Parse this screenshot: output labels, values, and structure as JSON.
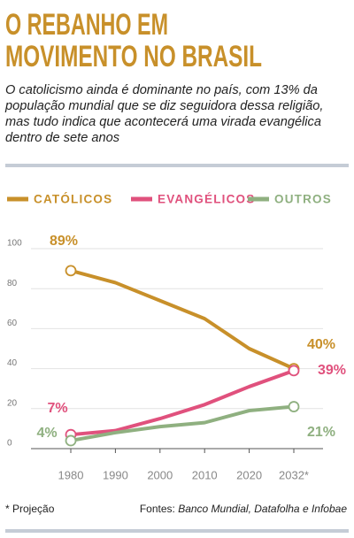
{
  "chart_data": {
    "type": "line",
    "title": [
      "O REBANHO EM",
      "MOVIMENTO NO BRASIL"
    ],
    "subtitle": "O catolicismo ainda é dominante no país, com 13% da população mundial que se diz seguidora dessa religião, mas tudo indica que acontecerá uma virada evangélica dentro de sete anos",
    "categories": [
      "1980",
      "1990",
      "2000",
      "2010",
      "2020",
      "2032*"
    ],
    "series": [
      {
        "name": "CATÓLICOS",
        "color": "#c8902a",
        "values": [
          89,
          83,
          74,
          65,
          50,
          40
        ],
        "value_labels": [
          "89%",
          null,
          null,
          null,
          null,
          "40%"
        ]
      },
      {
        "name": "EVANGÉLICOS",
        "color": "#e0517d",
        "values": [
          7,
          9,
          15,
          22,
          31,
          39
        ],
        "value_labels": [
          "7%",
          null,
          null,
          null,
          null,
          "39%"
        ]
      },
      {
        "name": "OUTROS",
        "color": "#8fb080",
        "values": [
          4,
          8,
          11,
          13,
          19,
          21
        ],
        "value_labels": [
          "4%",
          null,
          null,
          null,
          null,
          "21%"
        ]
      }
    ],
    "ylim": [
      0,
      100
    ],
    "yticks": [
      0,
      20,
      40,
      60,
      80,
      100
    ],
    "grid": true,
    "note": "* Projeção",
    "source_label": "Fontes:",
    "source": "Banco Mundial, Datafolha e Infobae"
  }
}
